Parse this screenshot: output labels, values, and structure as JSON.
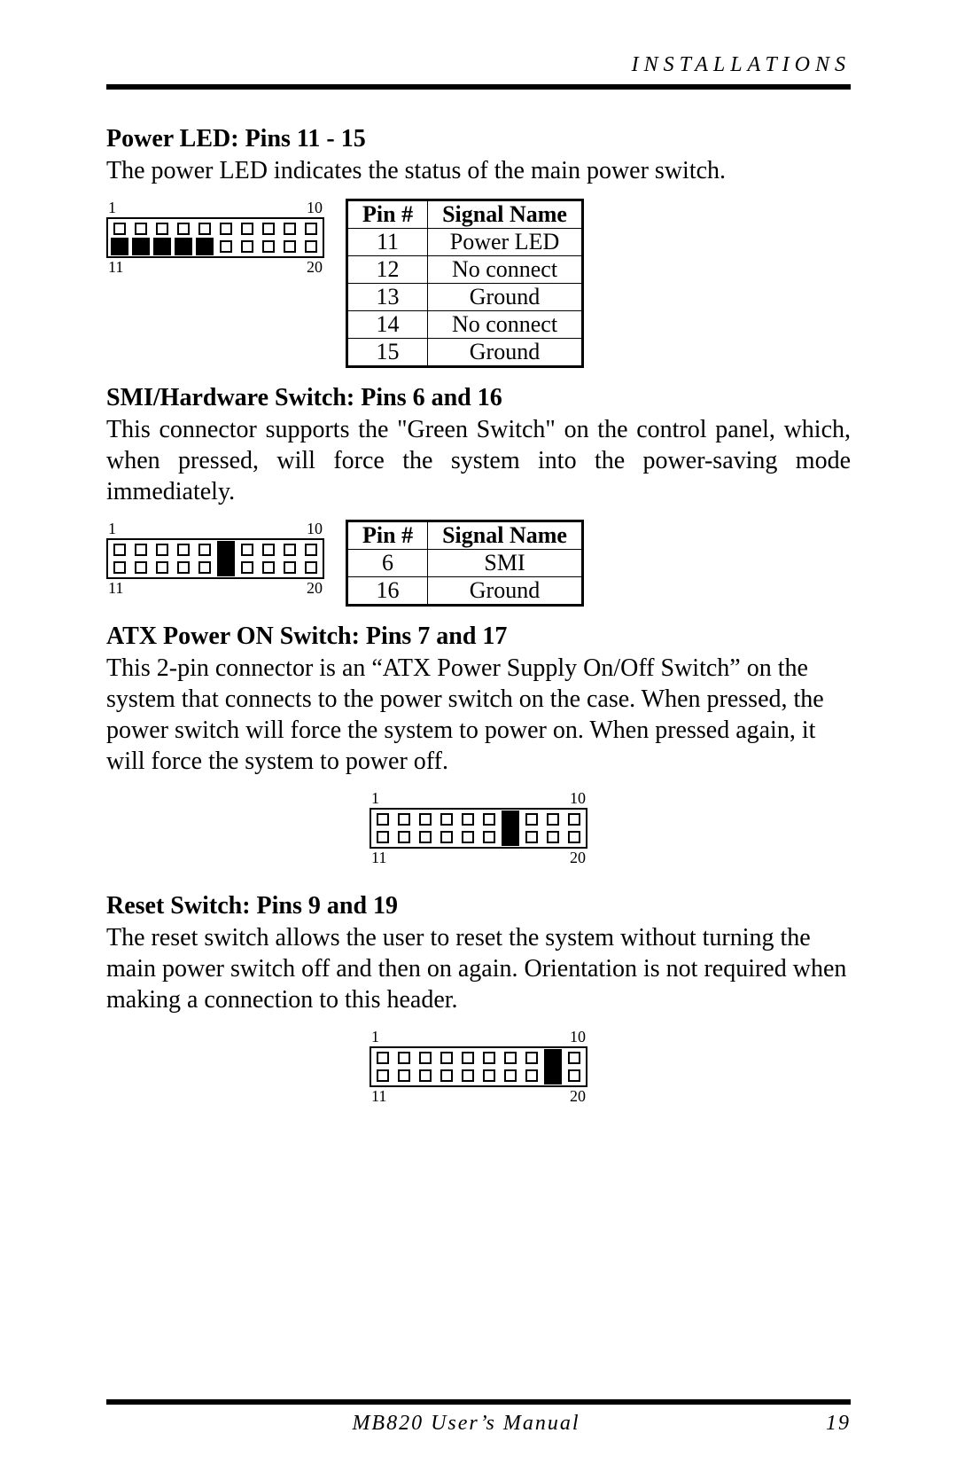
{
  "header": {
    "title": "INSTALLATIONS"
  },
  "sections": {
    "powerLed": {
      "title": "Power LED: Pins 11 - 15",
      "text": "The power LED indicates the status of the main power switch.",
      "diagram": {
        "topLeft": "1",
        "topRight": "10",
        "bottomLeft": "11",
        "bottomRight": "20",
        "row1Filled": [],
        "row2Filled": [
          1,
          2,
          3,
          4,
          5
        ]
      },
      "table": {
        "headers": [
          "Pin #",
          "Signal Name"
        ],
        "rows": [
          [
            "11",
            "Power LED"
          ],
          [
            "12",
            "No connect"
          ],
          [
            "13",
            "Ground"
          ],
          [
            "14",
            "No connect"
          ],
          [
            "15",
            "Ground"
          ]
        ]
      }
    },
    "smi": {
      "title": "SMI/Hardware Switch: Pins 6 and 16",
      "text": "This connector supports the \"Green Switch\" on the control panel, which, when pressed, will force the system into the power-saving mode immediately.",
      "diagram": {
        "topLeft": "1",
        "topRight": "10",
        "bottomLeft": "11",
        "bottomRight": "20",
        "row1Filled": [
          6
        ],
        "row2Filled": [
          6
        ]
      },
      "table": {
        "headers": [
          "Pin #",
          "Signal Name"
        ],
        "rows": [
          [
            "6",
            "SMI"
          ],
          [
            "16",
            "Ground"
          ]
        ]
      }
    },
    "atx": {
      "title": "ATX Power ON Switch: Pins 7 and 17",
      "text": "This 2-pin connector is an “ATX Power Supply On/Off Switch” on the system that connects to the power switch on the case. When pressed, the power switch will force the system to power on. When pressed again, it will force the system to power off.",
      "diagram": {
        "topLeft": "1",
        "topRight": "10",
        "bottomLeft": "11",
        "bottomRight": "20",
        "row1Filled": [
          7
        ],
        "row2Filled": [
          7
        ]
      }
    },
    "reset": {
      "title": "Reset Switch: Pins 9 and 19",
      "text": "The reset switch allows the user to reset the system without turning the main power switch off and then on again. Orientation is not required when making a connection to this header.",
      "diagram": {
        "topLeft": "1",
        "topRight": "10",
        "bottomLeft": "11",
        "bottomRight": "20",
        "row1Filled": [
          9
        ],
        "row2Filled": [
          9
        ]
      }
    }
  },
  "footer": {
    "manual": "MB820 User’s Manual",
    "page": "19"
  },
  "style": {
    "pinCount": 10,
    "colors": {
      "ink": "#000000",
      "paper": "#ffffff"
    }
  }
}
